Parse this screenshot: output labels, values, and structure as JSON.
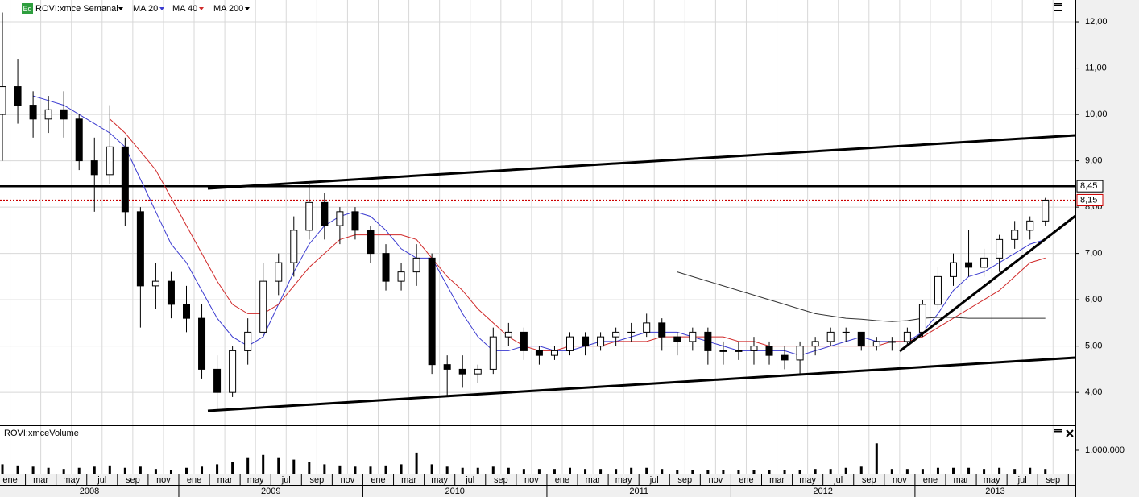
{
  "chart_data": {
    "type": "candlestick",
    "title": "ROVI:xmce Semanal",
    "badge": "Eq",
    "categories": [
      "ene",
      null,
      "mar",
      null,
      "may",
      null,
      "jul",
      null,
      "sep",
      null,
      "nov",
      null,
      "ene",
      null,
      "mar",
      null,
      "may",
      null,
      "jul",
      null,
      "sep",
      null,
      "nov",
      null,
      "ene",
      null,
      "mar",
      null,
      "may",
      null,
      "jul",
      null,
      "sep",
      null,
      "nov",
      null,
      "ene",
      null,
      "mar",
      null,
      "may",
      null,
      "jul",
      null,
      "sep",
      null,
      "nov",
      null,
      "ene",
      null,
      "mar",
      null,
      "may",
      null,
      "jul",
      null,
      "sep",
      null,
      "nov",
      null,
      "ene",
      null,
      "mar",
      null,
      "may",
      null,
      "jul",
      null,
      "sep"
    ],
    "years": [
      "2008",
      "2009",
      "2010",
      "2011",
      "2012",
      "2013"
    ],
    "candles": [
      [
        10.0,
        12.2,
        9.0,
        10.6
      ],
      [
        10.6,
        11.2,
        9.8,
        10.2
      ],
      [
        10.2,
        10.5,
        9.5,
        9.9
      ],
      [
        9.9,
        10.4,
        9.6,
        10.1
      ],
      [
        10.1,
        10.5,
        9.5,
        9.9
      ],
      [
        9.9,
        10.0,
        8.8,
        9.0
      ],
      [
        9.0,
        9.5,
        7.9,
        8.7
      ],
      [
        8.7,
        10.2,
        8.5,
        9.3
      ],
      [
        9.3,
        9.5,
        7.6,
        7.9
      ],
      [
        7.9,
        8.0,
        5.4,
        6.3
      ],
      [
        6.3,
        6.8,
        5.8,
        6.4
      ],
      [
        6.4,
        6.6,
        5.6,
        5.9
      ],
      [
        5.9,
        6.3,
        5.3,
        5.6
      ],
      [
        5.6,
        5.9,
        4.3,
        4.5
      ],
      [
        4.5,
        4.8,
        3.6,
        4.0
      ],
      [
        4.0,
        5.0,
        3.9,
        4.9
      ],
      [
        4.9,
        5.6,
        4.6,
        5.3
      ],
      [
        5.3,
        6.8,
        5.2,
        6.4
      ],
      [
        6.4,
        7.0,
        6.1,
        6.8
      ],
      [
        6.8,
        7.8,
        6.5,
        7.5
      ],
      [
        7.5,
        8.5,
        7.3,
        8.1
      ],
      [
        8.1,
        8.3,
        7.3,
        7.6
      ],
      [
        7.6,
        8.0,
        7.2,
        7.9
      ],
      [
        7.9,
        8.0,
        7.3,
        7.5
      ],
      [
        7.5,
        7.6,
        6.8,
        7.0
      ],
      [
        7.0,
        7.2,
        6.2,
        6.4
      ],
      [
        6.4,
        6.8,
        6.2,
        6.6
      ],
      [
        6.6,
        7.2,
        6.3,
        6.9
      ],
      [
        6.9,
        7.0,
        4.4,
        4.6
      ],
      [
        4.6,
        4.8,
        3.9,
        4.5
      ],
      [
        4.5,
        4.8,
        4.1,
        4.4
      ],
      [
        4.4,
        4.6,
        4.2,
        4.5
      ],
      [
        4.5,
        5.4,
        4.4,
        5.2
      ],
      [
        5.2,
        5.5,
        5.0,
        5.3
      ],
      [
        5.3,
        5.4,
        4.7,
        4.9
      ],
      [
        4.9,
        5.0,
        4.6,
        4.8
      ],
      [
        4.8,
        5.0,
        4.7,
        4.9
      ],
      [
        4.9,
        5.3,
        4.8,
        5.2
      ],
      [
        5.2,
        5.3,
        4.8,
        5.0
      ],
      [
        5.0,
        5.3,
        4.9,
        5.2
      ],
      [
        5.2,
        5.4,
        5.0,
        5.3
      ],
      [
        5.3,
        5.5,
        5.1,
        5.3
      ],
      [
        5.3,
        5.7,
        5.2,
        5.5
      ],
      [
        5.5,
        5.6,
        4.9,
        5.2
      ],
      [
        5.2,
        5.3,
        4.8,
        5.1
      ],
      [
        5.1,
        5.4,
        4.9,
        5.3
      ],
      [
        5.3,
        5.4,
        4.6,
        4.9
      ],
      [
        4.9,
        5.1,
        4.6,
        4.9
      ],
      [
        4.9,
        5.1,
        4.7,
        4.9
      ],
      [
        4.9,
        5.2,
        4.6,
        5.0
      ],
      [
        5.0,
        5.1,
        4.6,
        4.8
      ],
      [
        4.8,
        5.0,
        4.5,
        4.7
      ],
      [
        4.7,
        5.1,
        4.4,
        5.0
      ],
      [
        5.0,
        5.2,
        4.8,
        5.1
      ],
      [
        5.1,
        5.4,
        5.0,
        5.3
      ],
      [
        5.3,
        5.4,
        5.1,
        5.3
      ],
      [
        5.3,
        5.3,
        4.9,
        5.0
      ],
      [
        5.0,
        5.2,
        4.9,
        5.1
      ],
      [
        5.1,
        5.2,
        4.9,
        5.1
      ],
      [
        5.1,
        5.4,
        5.0,
        5.3
      ],
      [
        5.3,
        6.0,
        5.2,
        5.9
      ],
      [
        5.9,
        6.7,
        5.8,
        6.5
      ],
      [
        6.5,
        7.0,
        6.3,
        6.8
      ],
      [
        6.8,
        7.5,
        6.5,
        6.7
      ],
      [
        6.7,
        7.1,
        6.5,
        6.9
      ],
      [
        6.9,
        7.4,
        6.6,
        7.3
      ],
      [
        7.3,
        7.7,
        7.1,
        7.5
      ],
      [
        7.5,
        7.8,
        7.3,
        7.7
      ],
      [
        7.7,
        8.2,
        7.6,
        8.15
      ]
    ],
    "up_color": "#ffffff",
    "down_color": "#000000",
    "series": [
      {
        "name": "MA 20",
        "color": "#3b3bd0",
        "values": [
          null,
          null,
          10.4,
          10.3,
          10.2,
          10.0,
          9.8,
          9.6,
          9.3,
          8.6,
          7.9,
          7.2,
          6.8,
          6.2,
          5.6,
          5.2,
          5.0,
          5.2,
          5.9,
          6.6,
          7.2,
          7.6,
          7.8,
          7.9,
          7.8,
          7.5,
          7.1,
          6.9,
          6.9,
          6.3,
          5.7,
          5.2,
          4.9,
          4.9,
          5.0,
          5.0,
          4.9,
          4.9,
          5.0,
          5.1,
          5.1,
          5.2,
          5.3,
          5.3,
          5.3,
          5.2,
          5.1,
          5.0,
          4.9,
          4.9,
          4.9,
          4.9,
          4.8,
          4.9,
          5.0,
          5.1,
          5.2,
          5.1,
          5.1,
          5.1,
          5.3,
          5.7,
          6.2,
          6.5,
          6.6,
          6.8,
          7.0,
          7.2,
          7.3
        ]
      },
      {
        "name": "MA 40",
        "color": "#d02a2a",
        "values": [
          null,
          null,
          null,
          null,
          null,
          null,
          null,
          9.9,
          9.6,
          9.2,
          8.8,
          8.2,
          7.6,
          7.0,
          6.4,
          5.9,
          5.7,
          5.7,
          5.9,
          6.3,
          6.7,
          7.0,
          7.3,
          7.4,
          7.4,
          7.4,
          7.4,
          7.3,
          6.9,
          6.5,
          6.2,
          5.8,
          5.5,
          5.2,
          5.0,
          4.9,
          4.9,
          5.0,
          5.0,
          5.0,
          5.1,
          5.1,
          5.1,
          5.2,
          5.2,
          5.2,
          5.2,
          5.2,
          5.1,
          5.1,
          5.0,
          5.0,
          5.0,
          5.0,
          5.0,
          5.0,
          5.0,
          5.0,
          5.1,
          5.1,
          5.2,
          5.4,
          5.6,
          5.8,
          6.0,
          6.2,
          6.5,
          6.8,
          6.9
        ]
      },
      {
        "name": "MA 200",
        "color": "#333333",
        "values": [
          null,
          null,
          null,
          null,
          null,
          null,
          null,
          null,
          null,
          null,
          null,
          null,
          null,
          null,
          null,
          null,
          null,
          null,
          null,
          null,
          null,
          null,
          null,
          null,
          null,
          null,
          null,
          null,
          null,
          null,
          null,
          null,
          null,
          null,
          null,
          null,
          null,
          null,
          null,
          null,
          null,
          null,
          null,
          null,
          6.6,
          6.5,
          6.4,
          6.3,
          6.2,
          6.1,
          6.0,
          5.9,
          5.8,
          5.7,
          5.65,
          5.6,
          5.58,
          5.55,
          5.53,
          5.55,
          5.6,
          5.62,
          5.62,
          5.6,
          5.6,
          5.6,
          5.6,
          5.6,
          5.6
        ]
      }
    ],
    "price_markers": [
      {
        "value": 8.45,
        "label": "8,45",
        "color": "#000000"
      },
      {
        "value": 8.15,
        "label": "8,15",
        "color": "#cc0000"
      }
    ],
    "ylim": [
      3.29,
      12.47
    ],
    "yticks": [
      {
        "value": 4,
        "label": "4,00"
      },
      {
        "value": 5,
        "label": "5,00"
      },
      {
        "value": 6,
        "label": "6,00"
      },
      {
        "value": 7,
        "label": "7,00"
      },
      {
        "value": 8,
        "label": "8,00"
      },
      {
        "value": 9,
        "label": "9,00"
      },
      {
        "value": 10,
        "label": "10,00"
      },
      {
        "value": 11,
        "label": "11,00"
      },
      {
        "value": 12,
        "label": "12,00"
      }
    ],
    "grid": true,
    "volume": {
      "name": "ROVI:xmceVolume",
      "color": "#000000",
      "values": [
        400000,
        350000,
        300000,
        250000,
        200000,
        250000,
        300000,
        350000,
        250000,
        300000,
        200000,
        150000,
        250000,
        300000,
        400000,
        500000,
        700000,
        800000,
        700000,
        600000,
        500000,
        400000,
        350000,
        300000,
        300000,
        350000,
        400000,
        900000,
        400000,
        300000,
        250000,
        250000,
        300000,
        250000,
        200000,
        200000,
        200000,
        250000,
        200000,
        200000,
        200000,
        250000,
        250000,
        200000,
        150000,
        150000,
        150000,
        150000,
        150000,
        150000,
        150000,
        150000,
        150000,
        200000,
        200000,
        250000,
        300000,
        1300000,
        200000,
        200000,
        200000,
        250000,
        250000,
        250000,
        200000,
        250000,
        200000,
        250000,
        200000
      ],
      "ylim": [
        0,
        1930000
      ],
      "yticks": [
        {
          "value": 1000000,
          "label": "1.000.000"
        }
      ]
    }
  }
}
